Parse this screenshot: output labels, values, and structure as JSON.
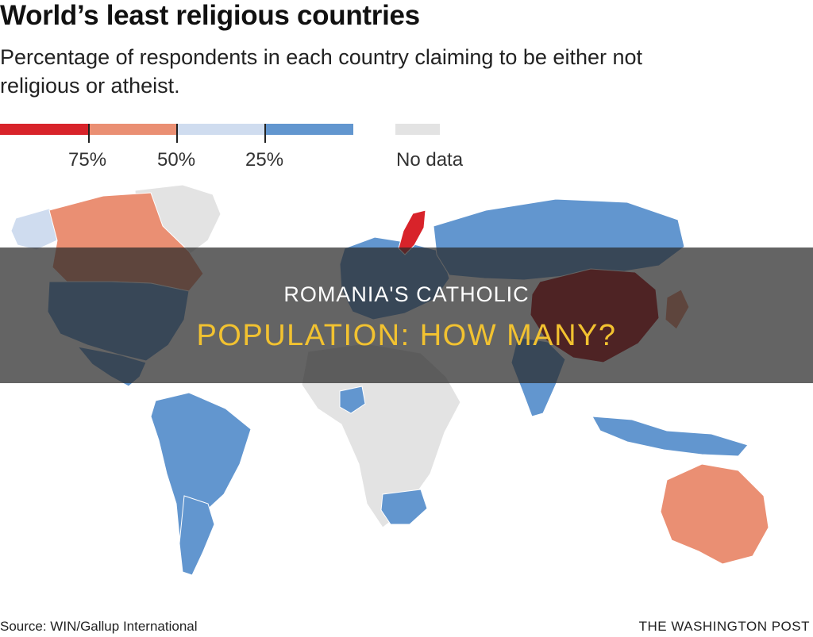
{
  "title": "World’s least religious countries",
  "subtitle": "Percentage of respondents in each country claiming to be either not religious or atheist.",
  "legend": {
    "colors": [
      "#d8232a",
      "#ea8f73",
      "#cfdcef",
      "#6296cf"
    ],
    "ticks": [
      "75%",
      "50%",
      "25%"
    ],
    "nodata_color": "#e3e3e3",
    "nodata_label": "No data"
  },
  "overlay": {
    "line1": "ROMANIA'S CATHOLIC",
    "line2": "POPULATION: HOW MANY?"
  },
  "source": "Source: WIN/Gallup International",
  "brand": "THE WASHINGTON POST",
  "map": {
    "land_color": "#d9d9d9",
    "regions": [
      {
        "name": "Greenland",
        "color": "#e3e3e3"
      },
      {
        "name": "Alaska",
        "color": "#cfdcef"
      },
      {
        "name": "Canada",
        "color": "#ea8f73"
      },
      {
        "name": "United States",
        "color": "#6296cf"
      },
      {
        "name": "Mexico",
        "color": "#6296cf"
      },
      {
        "name": "South America",
        "color": "#6296cf"
      },
      {
        "name": "Argentina",
        "color": "#6296cf"
      },
      {
        "name": "Africa",
        "color": "#e3e3e3"
      },
      {
        "name": "Nigeria",
        "color": "#6296cf"
      },
      {
        "name": "South Africa",
        "color": "#6296cf"
      },
      {
        "name": "Europe",
        "color": "#6296cf"
      },
      {
        "name": "Sweden",
        "color": "#d8232a"
      },
      {
        "name": "Russia",
        "color": "#6296cf"
      },
      {
        "name": "China",
        "color": "#b0171b"
      },
      {
        "name": "Japan",
        "color": "#ea8f73"
      },
      {
        "name": "India",
        "color": "#6296cf"
      },
      {
        "name": "Australia",
        "color": "#ea8f73"
      },
      {
        "name": "Indonesia",
        "color": "#6296cf"
      }
    ]
  }
}
